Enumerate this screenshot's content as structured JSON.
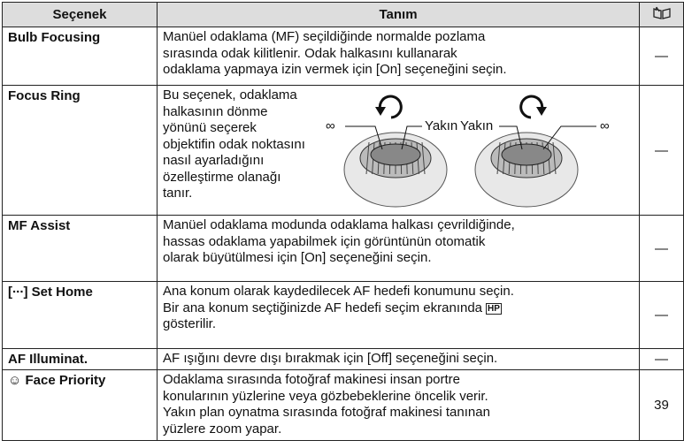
{
  "header": {
    "option": "Seçenek",
    "description": "Tanım"
  },
  "rows": [
    {
      "option": "Bulb Focusing",
      "lines": [
        "Manüel odaklama (MF) seçildiğinde normalde pozlama",
        "sırasında odak kilitlenir. Odak halkasını kullanarak",
        "odaklama yapmaya izin vermek için [On] seçeneğini seçin."
      ],
      "ref": "—"
    },
    {
      "option": "Focus Ring",
      "lines": [
        "Bu seçenek, odaklama",
        "halkasının dönme",
        "yönünü seçerek",
        "objektifin odak noktasını",
        "nasıl ayarladığını",
        "özelleştirme olanağı",
        "tanır."
      ],
      "illustration": {
        "left": [
          "∞",
          "Yakın"
        ],
        "right": [
          "Yakın",
          "∞"
        ]
      },
      "ref": "—"
    },
    {
      "option": "MF Assist",
      "lines": [
        "Manüel odaklama modunda odaklama halkası çevrildiğinde,",
        "hassas odaklama yapabilmek için görüntünün otomatik",
        "olarak büyütülmesi için [On] seçeneğini seçin."
      ],
      "ref": "—"
    },
    {
      "option": "[∙∙∙] Set Home",
      "lines": [
        "Ana konum olarak kaydedilecek AF hedefi konumunu seçin.",
        [
          "Bir ana konum seçtiğinizde AF hedefi seçim ekranında",
          "HP"
        ],
        "gösterilir."
      ],
      "ref": "—"
    },
    {
      "option": "AF Illuminat.",
      "lines": [
        "AF ışığını devre dışı bırakmak için [Off] seçeneğini seçin."
      ],
      "ref": "—"
    },
    {
      "option": "☺ Face Priority",
      "lines": [
        "Odaklama sırasında fotoğraf makinesi insan portre",
        "konularının yüzlerine veya gözbebeklerine öncelik verir.",
        "Yakın plan oynatma sırasında fotoğraf makinesi tanınan",
        "yüzlere zoom yapar."
      ],
      "ref": "39"
    }
  ]
}
